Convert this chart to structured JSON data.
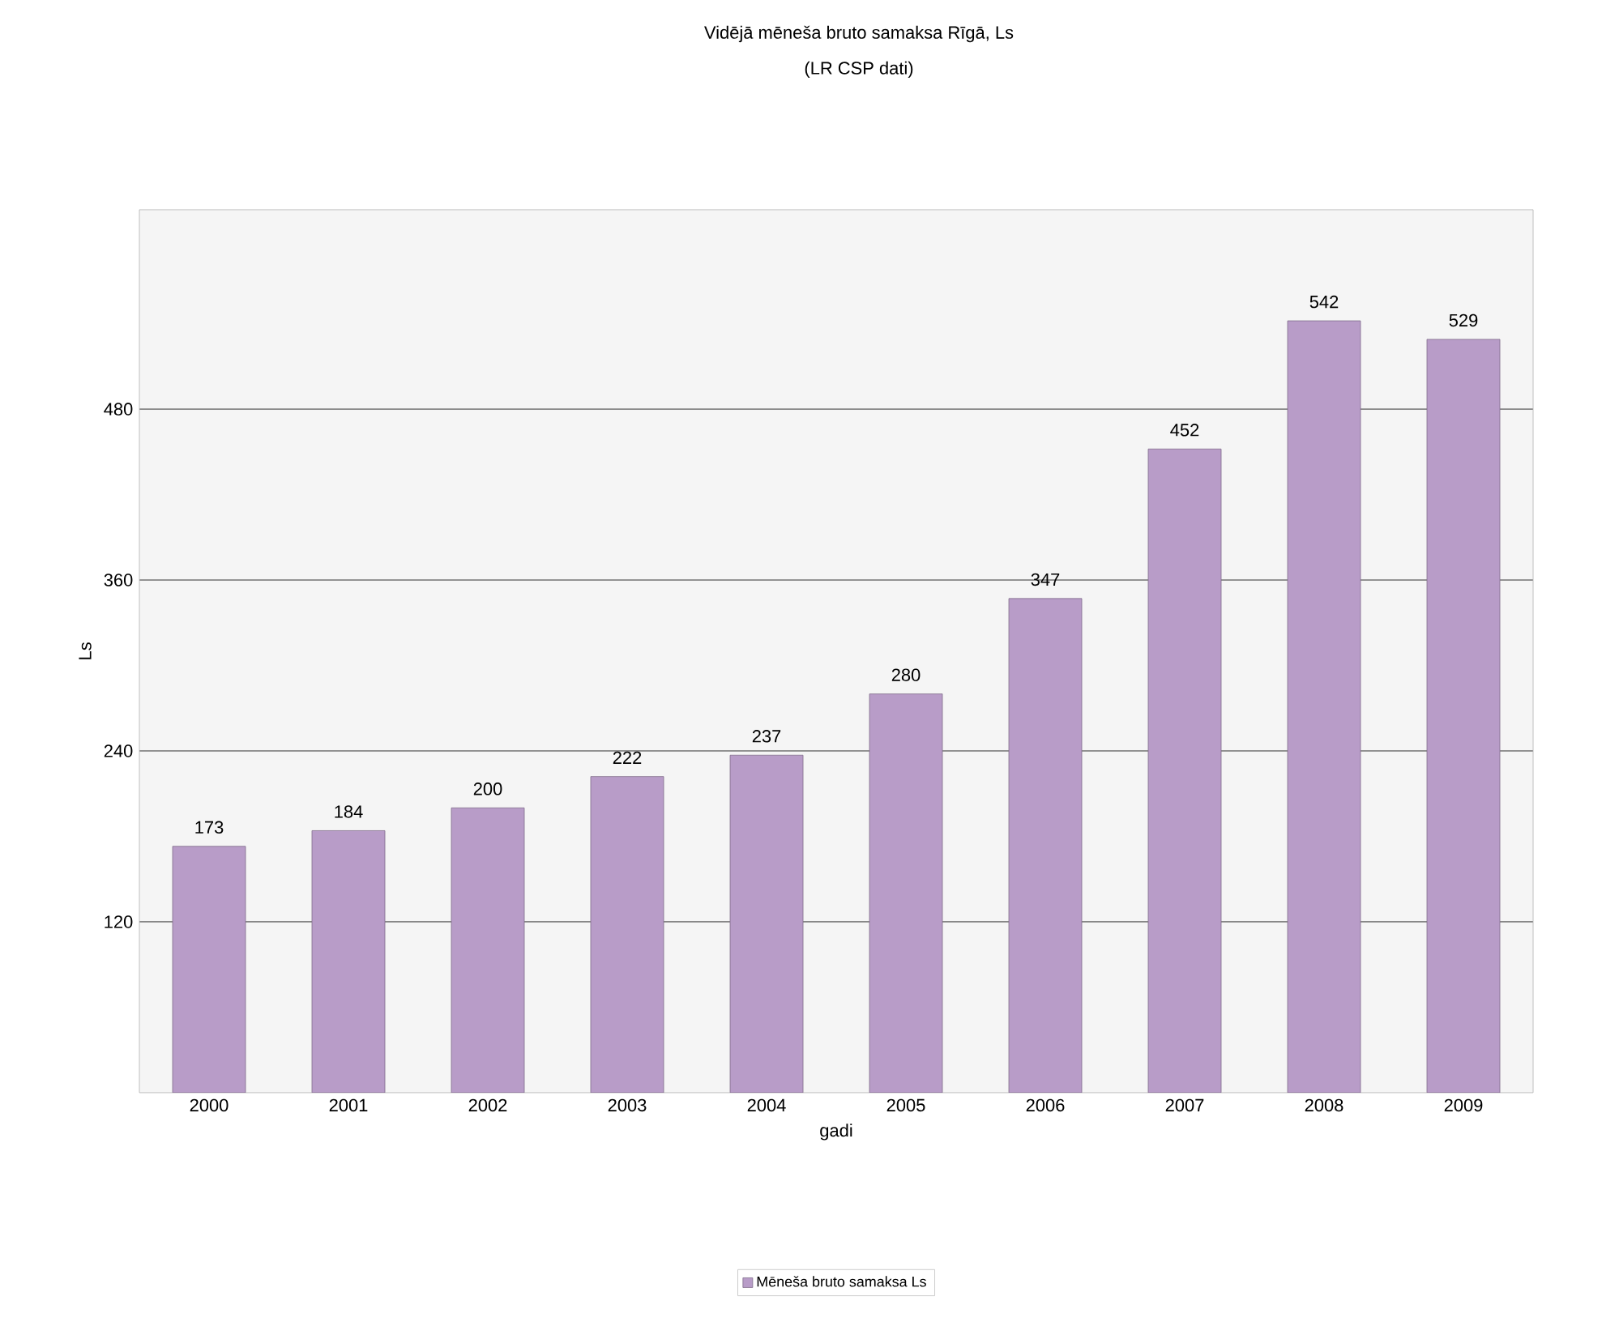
{
  "chart_data": {
    "type": "bar",
    "title": "Vidējā mēneša bruto samaksa Rīgā, Ls",
    "subtitle": "(LR CSP dati)",
    "xlabel": "gadi",
    "ylabel": "Ls",
    "categories": [
      "2000",
      "2001",
      "2002",
      "2003",
      "2004",
      "2005",
      "2006",
      "2007",
      "2008",
      "2009"
    ],
    "series": [
      {
        "name": "Mēneša bruto samaksa Ls",
        "color": "#b89cc8",
        "values": [
          173,
          184,
          200,
          222,
          237,
          280,
          347,
          452,
          542,
          529
        ]
      }
    ],
    "ylim": [
      0,
      620
    ],
    "yticks": [
      120,
      240,
      360,
      480
    ],
    "grid": "y",
    "legend": "bottom",
    "data_labels": true
  }
}
